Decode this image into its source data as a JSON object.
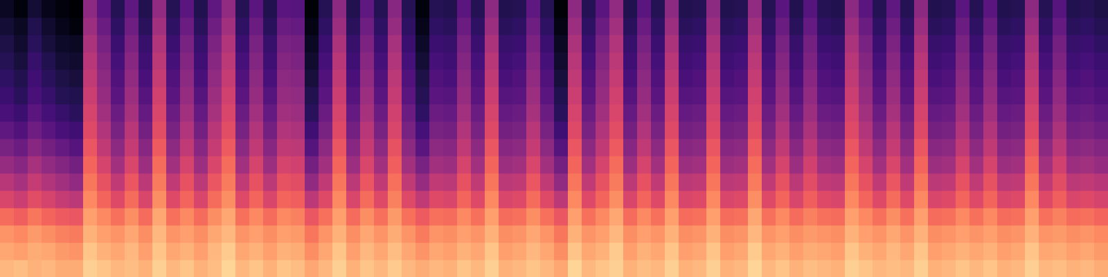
{
  "chart_data": {
    "type": "heatmap",
    "tick_labels": false,
    "zlim": [
      -80,
      0
    ],
    "z": [
      [
        -12,
        -11,
        -13,
        -12,
        -14,
        -14,
        -8,
        -10,
        -12,
        -11,
        -13,
        -8,
        -12,
        -10,
        -13,
        -11,
        -7,
        -12,
        -10,
        -13,
        -10,
        -11,
        -15,
        -12,
        -8,
        -13,
        -10,
        -12,
        -9,
        -12,
        -14,
        -12,
        -13,
        -10,
        -12,
        -8,
        -13,
        -12,
        -10,
        -12,
        -15,
        -7,
        -12,
        -10,
        -8,
        -13,
        -11,
        -12,
        -8,
        -13,
        -12,
        -8,
        -13,
        -12,
        -7,
        -12,
        -10,
        -13,
        -11,
        -12,
        -13,
        -8,
        -10,
        -12,
        -11,
        -12,
        -8,
        -13,
        -12,
        -10,
        -12,
        -10,
        -13,
        -12,
        -8,
        -12,
        -11,
        -13,
        -12,
        -14
      ],
      [
        -15,
        -16,
        -14,
        -15,
        -17,
        -18,
        -10,
        -13,
        -15,
        -12,
        -16,
        -10,
        -15,
        -13,
        -16,
        -12,
        -9,
        -15,
        -13,
        -16,
        -13,
        -14,
        -19,
        -15,
        -10,
        -16,
        -12,
        -15,
        -11,
        -15,
        -18,
        -15,
        -16,
        -13,
        -15,
        -10,
        -16,
        -15,
        -12,
        -15,
        -19,
        -10,
        -15,
        -13,
        -9,
        -16,
        -13,
        -15,
        -10,
        -16,
        -15,
        -10,
        -16,
        -15,
        -9,
        -15,
        -13,
        -16,
        -14,
        -15,
        -16,
        -10,
        -13,
        -15,
        -12,
        -15,
        -10,
        -16,
        -15,
        -13,
        -15,
        -13,
        -16,
        -15,
        -10,
        -15,
        -14,
        -16,
        -15,
        -17
      ],
      [
        -18,
        -20,
        -17,
        -19,
        -21,
        -22,
        -13,
        -16,
        -18,
        -15,
        -19,
        -12,
        -18,
        -16,
        -19,
        -15,
        -12,
        -18,
        -16,
        -19,
        -16,
        -17,
        -23,
        -18,
        -13,
        -19,
        -15,
        -18,
        -14,
        -18,
        -22,
        -18,
        -19,
        -16,
        -18,
        -13,
        -19,
        -18,
        -15,
        -18,
        -23,
        -13,
        -18,
        -16,
        -12,
        -19,
        -16,
        -18,
        -13,
        -19,
        -18,
        -13,
        -19,
        -18,
        -12,
        -18,
        -16,
        -19,
        -17,
        -18,
        -19,
        -13,
        -16,
        -18,
        -15,
        -18,
        -13,
        -19,
        -18,
        -16,
        -18,
        -16,
        -19,
        -18,
        -13,
        -18,
        -17,
        -19,
        -18,
        -20
      ],
      [
        -25,
        -27,
        -23,
        -26,
        -28,
        -29,
        -16,
        -20,
        -24,
        -19,
        -25,
        -15,
        -24,
        -20,
        -25,
        -19,
        -15,
        -24,
        -20,
        -25,
        -20,
        -21,
        -29,
        -24,
        -16,
        -25,
        -19,
        -24,
        -17,
        -24,
        -28,
        -24,
        -25,
        -20,
        -24,
        -16,
        -25,
        -24,
        -19,
        -24,
        -29,
        -16,
        -24,
        -20,
        -15,
        -25,
        -20,
        -24,
        -16,
        -25,
        -24,
        -16,
        -25,
        -24,
        -15,
        -24,
        -20,
        -25,
        -21,
        -24,
        -25,
        -16,
        -20,
        -24,
        -19,
        -24,
        -16,
        -25,
        -24,
        -20,
        -24,
        -20,
        -25,
        -24,
        -16,
        -24,
        -21,
        -25,
        -24,
        -26
      ],
      [
        -33,
        -36,
        -31,
        -34,
        -37,
        -39,
        -20,
        -26,
        -32,
        -25,
        -33,
        -19,
        -32,
        -26,
        -33,
        -25,
        -19,
        -32,
        -26,
        -33,
        -26,
        -27,
        -39,
        -32,
        -20,
        -33,
        -25,
        -32,
        -21,
        -32,
        -38,
        -32,
        -33,
        -26,
        -32,
        -20,
        -33,
        -32,
        -25,
        -32,
        -39,
        -20,
        -32,
        -26,
        -19,
        -33,
        -26,
        -32,
        -20,
        -33,
        -32,
        -20,
        -33,
        -32,
        -19,
        -32,
        -26,
        -33,
        -27,
        -32,
        -33,
        -20,
        -26,
        -32,
        -25,
        -32,
        -20,
        -33,
        -32,
        -26,
        -32,
        -26,
        -33,
        -32,
        -20,
        -32,
        -27,
        -33,
        -32,
        -34
      ],
      [
        -40,
        -43,
        -37,
        -41,
        -44,
        -47,
        -23,
        -30,
        -38,
        -29,
        -39,
        -22,
        -38,
        -30,
        -39,
        -29,
        -22,
        -38,
        -30,
        -39,
        -30,
        -31,
        -47,
        -38,
        -23,
        -39,
        -29,
        -38,
        -24,
        -38,
        -46,
        -38,
        -39,
        -30,
        -38,
        -23,
        -39,
        -38,
        -29,
        -38,
        -47,
        -23,
        -38,
        -30,
        -22,
        -39,
        -30,
        -38,
        -23,
        -39,
        -38,
        -23,
        -39,
        -38,
        -22,
        -38,
        -30,
        -39,
        -31,
        -38,
        -39,
        -23,
        -30,
        -38,
        -29,
        -38,
        -23,
        -39,
        -38,
        -30,
        -38,
        -30,
        -39,
        -38,
        -23,
        -38,
        -31,
        -39,
        -38,
        -40
      ],
      [
        -46,
        -49,
        -43,
        -47,
        -50,
        -53,
        -26,
        -34,
        -44,
        -33,
        -45,
        -25,
        -44,
        -34,
        -45,
        -33,
        -25,
        -44,
        -34,
        -45,
        -34,
        -35,
        -53,
        -44,
        -26,
        -45,
        -33,
        -44,
        -27,
        -44,
        -52,
        -44,
        -45,
        -34,
        -44,
        -26,
        -45,
        -44,
        -33,
        -44,
        -53,
        -26,
        -44,
        -34,
        -25,
        -45,
        -34,
        -44,
        -26,
        -45,
        -44,
        -26,
        -45,
        -44,
        -25,
        -44,
        -34,
        -45,
        -35,
        -44,
        -45,
        -26,
        -34,
        -44,
        -33,
        -44,
        -26,
        -45,
        -44,
        -34,
        -44,
        -34,
        -45,
        -44,
        -26,
        -44,
        -35,
        -45,
        -44,
        -46
      ],
      [
        -52,
        -55,
        -49,
        -53,
        -56,
        -59,
        -29,
        -38,
        -48,
        -37,
        -49,
        -28,
        -48,
        -38,
        -49,
        -37,
        -28,
        -48,
        -38,
        -49,
        -38,
        -39,
        -59,
        -48,
        -29,
        -49,
        -37,
        -48,
        -30,
        -48,
        -58,
        -48,
        -49,
        -38,
        -48,
        -29,
        -49,
        -48,
        -37,
        -48,
        -59,
        -29,
        -48,
        -38,
        -28,
        -49,
        -38,
        -48,
        -29,
        -49,
        -48,
        -29,
        -49,
        -48,
        -28,
        -48,
        -38,
        -49,
        -39,
        -48,
        -49,
        -29,
        -38,
        -48,
        -37,
        -48,
        -29,
        -49,
        -48,
        -38,
        -48,
        -38,
        -49,
        -48,
        -29,
        -48,
        -39,
        -49,
        -48,
        -50
      ],
      [
        -57,
        -60,
        -54,
        -58,
        -61,
        -63,
        -32,
        -41,
        -52,
        -40,
        -53,
        -31,
        -52,
        -41,
        -53,
        -40,
        -31,
        -52,
        -41,
        -53,
        -41,
        -42,
        -63,
        -52,
        -32,
        -53,
        -40,
        -52,
        -33,
        -52,
        -62,
        -52,
        -53,
        -41,
        -52,
        -32,
        -53,
        -52,
        -40,
        -52,
        -63,
        -32,
        -52,
        -41,
        -31,
        -53,
        -41,
        -52,
        -32,
        -53,
        -52,
        -32,
        -53,
        -52,
        -31,
        -52,
        -41,
        -53,
        -42,
        -52,
        -53,
        -32,
        -41,
        -52,
        -40,
        -52,
        -32,
        -53,
        -52,
        -41,
        -52,
        -41,
        -53,
        -52,
        -32,
        -52,
        -42,
        -53,
        -52,
        -54
      ],
      [
        -61,
        -64,
        -58,
        -62,
        -65,
        -67,
        -34,
        -44,
        -55,
        -43,
        -56,
        -33,
        -55,
        -44,
        -56,
        -43,
        -33,
        -55,
        -44,
        -56,
        -44,
        -45,
        -67,
        -55,
        -34,
        -56,
        -43,
        -55,
        -35,
        -55,
        -66,
        -55,
        -56,
        -44,
        -55,
        -34,
        -56,
        -55,
        -43,
        -55,
        -67,
        -34,
        -55,
        -44,
        -33,
        -56,
        -44,
        -55,
        -34,
        -56,
        -55,
        -34,
        -56,
        -55,
        -33,
        -55,
        -44,
        -56,
        -45,
        -55,
        -56,
        -34,
        -44,
        -55,
        -43,
        -55,
        -34,
        -56,
        -55,
        -44,
        -55,
        -44,
        -56,
        -55,
        -34,
        -55,
        -45,
        -56,
        -55,
        -57
      ],
      [
        -64,
        -67,
        -61,
        -65,
        -68,
        -69,
        -36,
        -46,
        -58,
        -45,
        -59,
        -35,
        -58,
        -46,
        -59,
        -45,
        -35,
        -58,
        -46,
        -59,
        -46,
        -47,
        -69,
        -58,
        -36,
        -59,
        -45,
        -58,
        -37,
        -58,
        -68,
        -58,
        -59,
        -46,
        -58,
        -36,
        -59,
        -58,
        -45,
        -58,
        -69,
        -36,
        -58,
        -46,
        -35,
        -59,
        -46,
        -58,
        -36,
        -59,
        -58,
        -36,
        -59,
        -58,
        -35,
        -58,
        -46,
        -59,
        -47,
        -58,
        -59,
        -36,
        -46,
        -58,
        -45,
        -58,
        -36,
        -59,
        -58,
        -46,
        -58,
        -46,
        -59,
        -58,
        -36,
        -58,
        -47,
        -59,
        -58,
        -60
      ],
      [
        -66,
        -69,
        -63,
        -67,
        -70,
        -71,
        -38,
        -48,
        -60,
        -47,
        -61,
        -37,
        -60,
        -48,
        -61,
        -47,
        -37,
        -60,
        -48,
        -61,
        -48,
        -49,
        -71,
        -60,
        -38,
        -61,
        -47,
        -60,
        -39,
        -60,
        -70,
        -60,
        -61,
        -48,
        -60,
        -38,
        -61,
        -60,
        -47,
        -60,
        -71,
        -38,
        -60,
        -48,
        -37,
        -61,
        -48,
        -60,
        -38,
        -61,
        -60,
        -38,
        -61,
        -60,
        -37,
        -60,
        -48,
        -61,
        -49,
        -60,
        -61,
        -38,
        -48,
        -60,
        -47,
        -60,
        -38,
        -61,
        -60,
        -48,
        -60,
        -48,
        -61,
        -60,
        -38,
        -60,
        -49,
        -61,
        -60,
        -62
      ],
      [
        -68,
        -71,
        -65,
        -69,
        -72,
        -73,
        -40,
        -50,
        -62,
        -49,
        -63,
        -39,
        -62,
        -50,
        -63,
        -49,
        -39,
        -62,
        -50,
        -63,
        -50,
        -51,
        -73,
        -62,
        -40,
        -63,
        -49,
        -62,
        -41,
        -62,
        -72,
        -62,
        -63,
        -50,
        -62,
        -40,
        -63,
        -62,
        -49,
        -62,
        -73,
        -40,
        -62,
        -50,
        -39,
        -63,
        -50,
        -62,
        -40,
        -63,
        -62,
        -40,
        -63,
        -62,
        -39,
        -62,
        -50,
        -63,
        -51,
        -62,
        -63,
        -40,
        -50,
        -62,
        -49,
        -62,
        -40,
        -63,
        -62,
        -50,
        -62,
        -50,
        -63,
        -62,
        -40,
        -62,
        -51,
        -63,
        -62,
        -64
      ],
      [
        -70,
        -73,
        -67,
        -71,
        -74,
        -75,
        -42,
        -52,
        -64,
        -51,
        -65,
        -41,
        -64,
        -52,
        -65,
        -51,
        -41,
        -64,
        -52,
        -65,
        -52,
        -53,
        -75,
        -64,
        -42,
        -65,
        -51,
        -64,
        -43,
        -64,
        -74,
        -64,
        -65,
        -52,
        -64,
        -42,
        -65,
        -64,
        -51,
        -64,
        -75,
        -42,
        -64,
        -52,
        -41,
        -65,
        -52,
        -64,
        -42,
        -65,
        -64,
        -42,
        -65,
        -64,
        -41,
        -64,
        -52,
        -65,
        -53,
        -64,
        -65,
        -42,
        -52,
        -64,
        -51,
        -64,
        -42,
        -65,
        -64,
        -52,
        -64,
        -52,
        -65,
        -64,
        -42,
        -64,
        -53,
        -65,
        -64,
        -66
      ],
      [
        -72,
        -75,
        -69,
        -73,
        -76,
        -78,
        -45,
        -55,
        -66,
        -54,
        -67,
        -44,
        -66,
        -55,
        -67,
        -54,
        -44,
        -66,
        -55,
        -67,
        -55,
        -56,
        -77,
        -66,
        -45,
        -67,
        -54,
        -66,
        -46,
        -66,
        -76,
        -66,
        -67,
        -55,
        -66,
        -45,
        -67,
        -66,
        -54,
        -66,
        -77,
        -45,
        -66,
        -55,
        -44,
        -67,
        -55,
        -66,
        -45,
        -67,
        -66,
        -45,
        -67,
        -66,
        -44,
        -66,
        -55,
        -67,
        -56,
        -66,
        -67,
        -45,
        -55,
        -66,
        -54,
        -66,
        -45,
        -67,
        -66,
        -55,
        -66,
        -55,
        -67,
        -66,
        -45,
        -66,
        -56,
        -67,
        -66,
        -68
      ],
      [
        -75,
        -78,
        -72,
        -76,
        -78,
        -80,
        -48,
        -58,
        -68,
        -57,
        -69,
        -47,
        -68,
        -58,
        -69,
        -57,
        -47,
        -68,
        -58,
        -69,
        -58,
        -59,
        -79,
        -68,
        -48,
        -69,
        -57,
        -68,
        -49,
        -68,
        -78,
        -68,
        -69,
        -58,
        -68,
        -48,
        -69,
        -68,
        -57,
        -68,
        -79,
        -48,
        -68,
        -58,
        -47,
        -69,
        -58,
        -68,
        -48,
        -69,
        -68,
        -48,
        -69,
        -68,
        -47,
        -68,
        -58,
        -69,
        -59,
        -68,
        -69,
        -48,
        -58,
        -68,
        -57,
        -68,
        -48,
        -69,
        -68,
        -58,
        -68,
        -58,
        -69,
        -68,
        -48,
        -68,
        -59,
        -69,
        -68,
        -70
      ]
    ]
  }
}
